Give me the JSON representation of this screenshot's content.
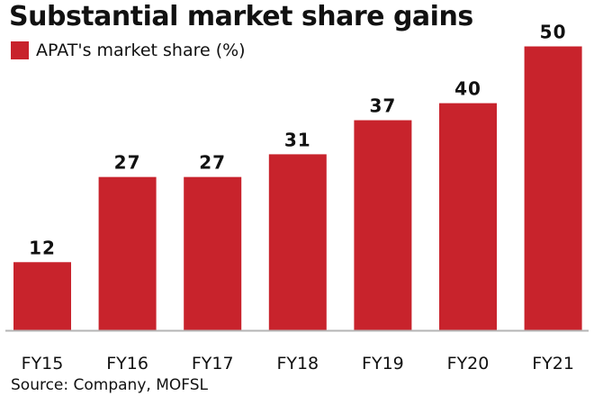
{
  "chart_data": {
    "type": "bar",
    "title": "Substantial market share gains",
    "legend": [
      "APAT's market share (%)"
    ],
    "legend_position": "top-left",
    "categories": [
      "FY15",
      "FY16",
      "FY17",
      "FY18",
      "FY19",
      "FY20",
      "FY21"
    ],
    "series": [
      {
        "name": "APAT's market share (%)",
        "values": [
          12,
          27,
          27,
          31,
          37,
          40,
          50
        ]
      }
    ],
    "data_labels": [
      "12",
      "27",
      "27",
      "31",
      "37",
      "40",
      "50"
    ],
    "xlabel": "",
    "ylabel": "",
    "ylim": [
      0,
      55
    ],
    "grid": false,
    "bar_color": "#c8232c",
    "axis_color": "#b5b5b5"
  },
  "source": "Source: Company, MOFSL"
}
